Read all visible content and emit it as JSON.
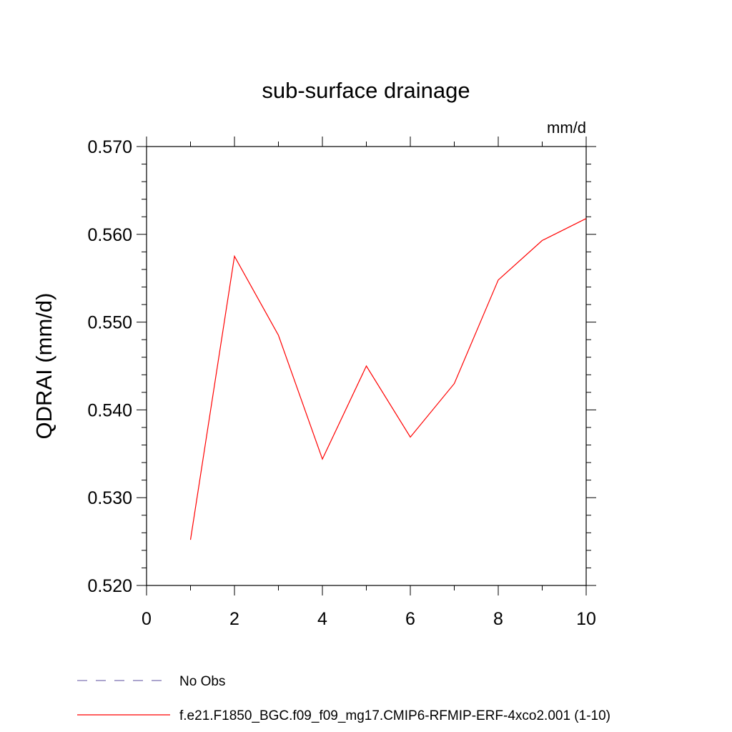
{
  "chart_data": {
    "type": "line",
    "title": "sub-surface drainage",
    "units_label": "mm/d",
    "ylabel": "QDRAI  (mm/d)",
    "xlabel": "",
    "xlim": [
      0,
      10
    ],
    "ylim": [
      0.52,
      0.57
    ],
    "x_ticks": [
      0,
      2,
      4,
      6,
      8,
      10
    ],
    "x_tick_labels": [
      "0",
      "2",
      "4",
      "6",
      "8",
      "10"
    ],
    "y_ticks": [
      0.52,
      0.53,
      0.54,
      0.55,
      0.56,
      0.57
    ],
    "y_tick_labels": [
      "0.520",
      "0.530",
      "0.540",
      "0.550",
      "0.560",
      "0.570"
    ],
    "x_minor_step": 1,
    "y_minor_step": 0.002,
    "grid": false,
    "legend_position": "bottom",
    "series": [
      {
        "name": "f.e21.F1850_BGC.f09_f09_mg17.CMIP6-RFMIP-ERF-4xco2.001 (1-10)",
        "color": "#ff0000",
        "dash": "solid",
        "x": [
          1,
          2,
          3,
          4,
          5,
          6,
          7,
          8,
          9,
          10
        ],
        "values": [
          0.5252,
          0.5575,
          0.5485,
          0.5344,
          0.545,
          0.5369,
          0.543,
          0.5548,
          0.5593,
          0.5618
        ]
      }
    ],
    "legend": [
      {
        "label": "No Obs",
        "color": "#7b6fb0",
        "dash": "dashed"
      },
      {
        "label": "f.e21.F1850_BGC.f09_f09_mg17.CMIP6-RFMIP-ERF-4xco2.001 (1-10)",
        "color": "#ff0000",
        "dash": "solid"
      }
    ]
  }
}
